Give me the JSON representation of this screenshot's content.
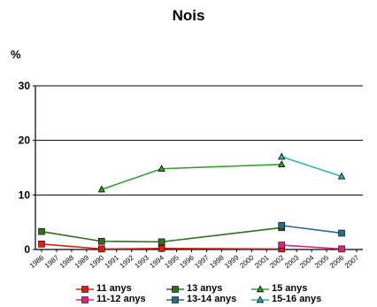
{
  "chart_data": {
    "type": "line",
    "title": "Nois",
    "ylabel": "%",
    "xlabel": "",
    "ylim": [
      0,
      30
    ],
    "yticks": [
      "0",
      "10",
      "20",
      "30"
    ],
    "grid": "horizontal",
    "legend_position": "bottom",
    "x": [
      1986,
      1987,
      1988,
      1989,
      1990,
      1991,
      1992,
      1993,
      1994,
      1995,
      1996,
      1997,
      1998,
      1999,
      2000,
      2001,
      2002,
      2003,
      2004,
      2005,
      2006,
      2007
    ],
    "series": [
      {
        "name": "11 anys",
        "color": "#e01e10",
        "marker": "square",
        "points": [
          [
            1986,
            1.0
          ],
          [
            1990,
            0.1
          ],
          [
            1994,
            0.2
          ],
          [
            2002,
            0.1
          ]
        ]
      },
      {
        "name": "11-12 anys",
        "color": "#e0207a",
        "marker": "square",
        "points": [
          [
            2002,
            0.8
          ],
          [
            2006,
            0.1
          ]
        ]
      },
      {
        "name": "13 anys",
        "color": "#2e6e1c",
        "marker": "square",
        "points": [
          [
            1986,
            3.3
          ],
          [
            1990,
            1.5
          ],
          [
            1994,
            1.4
          ],
          [
            2002,
            4.0
          ]
        ]
      },
      {
        "name": "13-14 anys",
        "color": "#2a6a8a",
        "marker": "square",
        "points": [
          [
            2002,
            4.4
          ],
          [
            2006,
            3.0
          ]
        ]
      },
      {
        "name": "15 anys",
        "color": "#33a02c",
        "marker": "triangle",
        "points": [
          [
            1990,
            11.0
          ],
          [
            1994,
            14.8
          ],
          [
            2002,
            15.6
          ]
        ]
      },
      {
        "name": "15-16 anys",
        "color": "#2fb4b0",
        "marker": "triangle",
        "points": [
          [
            2002,
            17.0
          ],
          [
            2006,
            13.4
          ]
        ]
      }
    ]
  }
}
